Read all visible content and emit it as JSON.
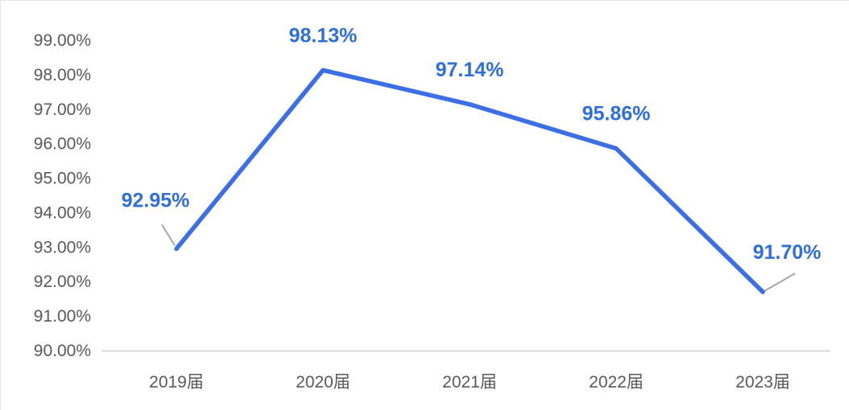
{
  "chart_data": {
    "type": "line",
    "title": "",
    "xlabel": "",
    "ylabel": "",
    "categories": [
      "2019届",
      "2020届",
      "2021届",
      "2022届",
      "2023届"
    ],
    "y_tick_labels": [
      "99.00%",
      "98.00%",
      "97.00%",
      "96.00%",
      "95.00%",
      "94.00%",
      "93.00%",
      "92.00%",
      "91.00%",
      "90.00%"
    ],
    "ylim": [
      90,
      99
    ],
    "y_tick_step": 1,
    "grid": false,
    "legend": "none",
    "series": [
      {
        "values": [
          92.95,
          98.13,
          97.14,
          95.86,
          91.7
        ],
        "data_labels": [
          "92.95%",
          "98.13%",
          "97.14%",
          "95.86%",
          "91.70%"
        ],
        "color": "#3c6fe6"
      }
    ],
    "colors": {
      "line": "#3c6fe6",
      "data_label": "#2f6fdc",
      "drop_line": "#8fb0f0",
      "axis": "#d9d9d9",
      "tick_label": "#595959",
      "leader_line": "#a6a6a6"
    }
  }
}
